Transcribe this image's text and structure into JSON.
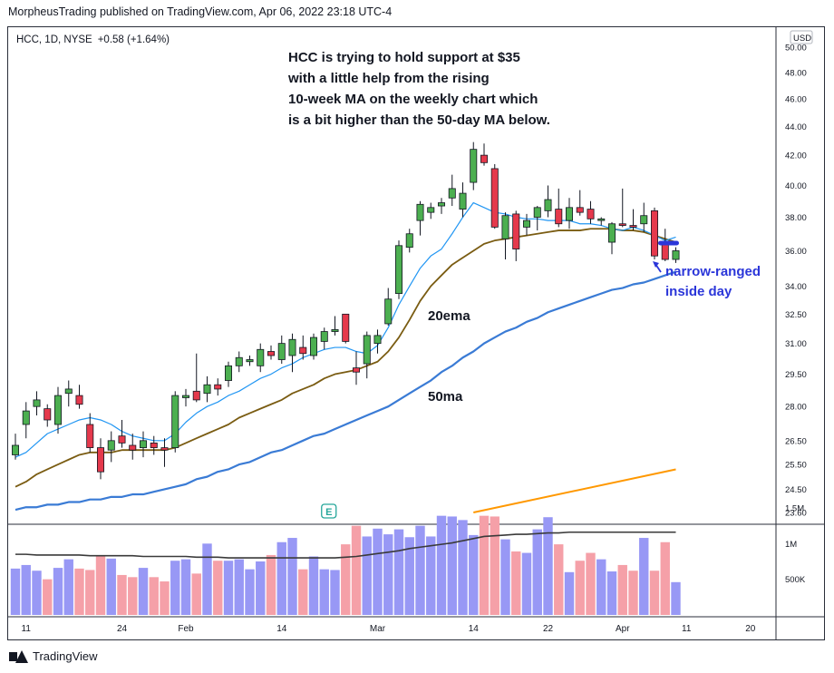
{
  "header": {
    "published": "MorpheusTrading published on TradingView.com, Apr 06, 2022 23:18 UTC-4"
  },
  "footer": {
    "brand": "TradingView"
  },
  "chart_data": {
    "type": "candlestick",
    "symbol_line": {
      "symbol": "HCC, 1D, NYSE",
      "change": "+0.58 (+1.64%)"
    },
    "currency": "USD",
    "y_ticks": [
      "50.00",
      "48.00",
      "46.00",
      "44.00",
      "42.00",
      "40.00",
      "38.00",
      "36.00",
      "34.00",
      "32.50",
      "31.00",
      "29.50",
      "28.00",
      "26.50",
      "25.50",
      "24.50",
      "23.60"
    ],
    "y_tick_values": [
      50,
      48,
      46,
      44,
      42,
      40,
      38,
      36,
      34,
      32.5,
      31,
      29.5,
      28,
      26.5,
      25.5,
      24.5,
      23.6
    ],
    "volume_ticks": [
      "1.5M",
      "1M",
      "500K"
    ],
    "volume_tick_values": [
      1500000,
      1000000,
      500000
    ],
    "x_ticks": [
      "11",
      "24",
      "Feb",
      "14",
      "Mar",
      "14",
      "22",
      "Apr",
      "11",
      "20"
    ],
    "x_tick_bar_index": [
      1,
      10,
      16,
      25,
      34,
      43,
      50,
      57,
      63,
      69
    ],
    "candles": [
      {
        "o": 25.9,
        "h": 26.8,
        "l": 25.7,
        "c": 26.3
      },
      {
        "o": 27.2,
        "h": 28.2,
        "l": 26.6,
        "c": 27.8
      },
      {
        "o": 28.0,
        "h": 28.7,
        "l": 27.6,
        "c": 28.3
      },
      {
        "o": 27.9,
        "h": 28.1,
        "l": 27.1,
        "c": 27.4
      },
      {
        "o": 27.2,
        "h": 28.9,
        "l": 26.8,
        "c": 28.5
      },
      {
        "o": 28.6,
        "h": 29.2,
        "l": 28.0,
        "c": 28.8
      },
      {
        "o": 28.5,
        "h": 29.0,
        "l": 27.9,
        "c": 28.1
      },
      {
        "o": 27.2,
        "h": 27.7,
        "l": 26.0,
        "c": 26.2
      },
      {
        "o": 26.2,
        "h": 26.6,
        "l": 24.9,
        "c": 25.2
      },
      {
        "o": 26.1,
        "h": 26.9,
        "l": 25.6,
        "c": 26.5
      },
      {
        "o": 26.7,
        "h": 27.4,
        "l": 26.2,
        "c": 26.4
      },
      {
        "o": 26.3,
        "h": 26.8,
        "l": 25.7,
        "c": 26.1
      },
      {
        "o": 26.2,
        "h": 26.9,
        "l": 25.8,
        "c": 26.5
      },
      {
        "o": 26.4,
        "h": 26.7,
        "l": 25.9,
        "c": 26.2
      },
      {
        "o": 26.2,
        "h": 26.6,
        "l": 25.4,
        "c": 26.1
      },
      {
        "o": 26.2,
        "h": 28.7,
        "l": 26.0,
        "c": 28.5
      },
      {
        "o": 28.4,
        "h": 28.8,
        "l": 28.0,
        "c": 28.5
      },
      {
        "o": 28.7,
        "h": 30.5,
        "l": 28.2,
        "c": 28.3
      },
      {
        "o": 28.6,
        "h": 29.4,
        "l": 28.2,
        "c": 29.0
      },
      {
        "o": 29.0,
        "h": 29.3,
        "l": 28.5,
        "c": 28.8
      },
      {
        "o": 29.2,
        "h": 30.1,
        "l": 28.9,
        "c": 29.9
      },
      {
        "o": 29.9,
        "h": 30.6,
        "l": 29.6,
        "c": 30.3
      },
      {
        "o": 30.1,
        "h": 30.4,
        "l": 29.9,
        "c": 30.2
      },
      {
        "o": 29.9,
        "h": 31.0,
        "l": 29.6,
        "c": 30.7
      },
      {
        "o": 30.6,
        "h": 30.9,
        "l": 30.2,
        "c": 30.4
      },
      {
        "o": 30.2,
        "h": 31.4,
        "l": 30.0,
        "c": 31.0
      },
      {
        "o": 30.4,
        "h": 31.5,
        "l": 29.6,
        "c": 31.2
      },
      {
        "o": 30.8,
        "h": 31.4,
        "l": 30.2,
        "c": 30.5
      },
      {
        "o": 30.4,
        "h": 31.5,
        "l": 30.2,
        "c": 31.3
      },
      {
        "o": 31.1,
        "h": 31.8,
        "l": 30.7,
        "c": 31.6
      },
      {
        "o": 31.6,
        "h": 32.4,
        "l": 31.4,
        "c": 31.7
      },
      {
        "o": 32.5,
        "h": 32.5,
        "l": 31.0,
        "c": 31.1
      },
      {
        "o": 29.8,
        "h": 30.6,
        "l": 29.0,
        "c": 29.6
      },
      {
        "o": 30.0,
        "h": 31.6,
        "l": 29.3,
        "c": 31.4
      },
      {
        "o": 31.0,
        "h": 31.7,
        "l": 30.5,
        "c": 31.4
      },
      {
        "o": 32.0,
        "h": 33.9,
        "l": 31.9,
        "c": 33.3
      },
      {
        "o": 33.6,
        "h": 36.6,
        "l": 33.3,
        "c": 36.3
      },
      {
        "o": 36.2,
        "h": 37.3,
        "l": 35.9,
        "c": 37.0
      },
      {
        "o": 37.8,
        "h": 39.0,
        "l": 36.9,
        "c": 38.8
      },
      {
        "o": 38.3,
        "h": 38.9,
        "l": 37.9,
        "c": 38.6
      },
      {
        "o": 38.7,
        "h": 39.2,
        "l": 38.2,
        "c": 38.9
      },
      {
        "o": 39.2,
        "h": 40.7,
        "l": 38.7,
        "c": 39.8
      },
      {
        "o": 38.5,
        "h": 40.2,
        "l": 38.0,
        "c": 39.5
      },
      {
        "o": 40.2,
        "h": 42.9,
        "l": 39.7,
        "c": 42.4
      },
      {
        "o": 42.0,
        "h": 42.8,
        "l": 41.3,
        "c": 41.5
      },
      {
        "o": 41.1,
        "h": 41.4,
        "l": 37.3,
        "c": 37.4
      },
      {
        "o": 36.7,
        "h": 38.3,
        "l": 35.5,
        "c": 38.1
      },
      {
        "o": 38.2,
        "h": 38.4,
        "l": 35.4,
        "c": 36.1
      },
      {
        "o": 37.4,
        "h": 38.2,
        "l": 36.9,
        "c": 37.8
      },
      {
        "o": 38.0,
        "h": 38.7,
        "l": 37.2,
        "c": 38.6
      },
      {
        "o": 38.4,
        "h": 40.0,
        "l": 38.0,
        "c": 39.1
      },
      {
        "o": 38.5,
        "h": 39.8,
        "l": 37.4,
        "c": 37.6
      },
      {
        "o": 37.8,
        "h": 39.2,
        "l": 37.3,
        "c": 38.6
      },
      {
        "o": 38.6,
        "h": 39.7,
        "l": 38.1,
        "c": 38.3
      },
      {
        "o": 38.5,
        "h": 39.0,
        "l": 37.6,
        "c": 37.9
      },
      {
        "o": 37.8,
        "h": 38.0,
        "l": 37.5,
        "c": 37.9
      },
      {
        "o": 36.5,
        "h": 37.7,
        "l": 35.8,
        "c": 37.6
      },
      {
        "o": 37.6,
        "h": 39.8,
        "l": 37.4,
        "c": 37.5
      },
      {
        "o": 37.5,
        "h": 38.5,
        "l": 37.2,
        "c": 37.4
      },
      {
        "o": 37.6,
        "h": 38.9,
        "l": 37.1,
        "c": 38.1
      },
      {
        "o": 38.4,
        "h": 38.6,
        "l": 35.5,
        "c": 35.7
      },
      {
        "o": 36.5,
        "h": 37.3,
        "l": 35.4,
        "c": 35.5
      },
      {
        "o": 35.5,
        "h": 36.2,
        "l": 35.3,
        "c": 36.0
      }
    ],
    "volume": [
      650000,
      700000,
      620000,
      500000,
      660000,
      780000,
      650000,
      630000,
      830000,
      790000,
      560000,
      530000,
      660000,
      530000,
      470000,
      760000,
      780000,
      580000,
      1000000,
      760000,
      760000,
      780000,
      640000,
      750000,
      840000,
      1020000,
      1080000,
      640000,
      820000,
      640000,
      630000,
      990000,
      1250000,
      1100000,
      1210000,
      1130000,
      1200000,
      1090000,
      1250000,
      1100000,
      1390000,
      1380000,
      1330000,
      1120000,
      1390000,
      1380000,
      1060000,
      890000,
      870000,
      1200000,
      1370000,
      990000,
      600000,
      760000,
      870000,
      780000,
      610000,
      700000,
      620000,
      1080000,
      620000,
      1020000,
      460000
    ],
    "volume_ma": [
      850000,
      850000,
      840000,
      840000,
      840000,
      840000,
      840000,
      830000,
      830000,
      830000,
      830000,
      830000,
      820000,
      820000,
      820000,
      820000,
      820000,
      810000,
      810000,
      810000,
      800000,
      800000,
      800000,
      800000,
      800000,
      800000,
      800000,
      800000,
      800000,
      800000,
      800000,
      810000,
      820000,
      840000,
      860000,
      880000,
      900000,
      930000,
      950000,
      970000,
      990000,
      1010000,
      1040000,
      1070000,
      1100000,
      1110000,
      1120000,
      1130000,
      1130000,
      1140000,
      1150000,
      1150000,
      1160000,
      1160000,
      1160000,
      1160000,
      1160000,
      1160000,
      1160000,
      1160000,
      1160000,
      1160000,
      1160000
    ],
    "ema20": [
      24.6,
      24.8,
      25.1,
      25.3,
      25.5,
      25.7,
      25.9,
      26.0,
      26.0,
      26.0,
      26.1,
      26.1,
      26.1,
      26.1,
      26.1,
      26.2,
      26.4,
      26.6,
      26.8,
      27.0,
      27.2,
      27.5,
      27.7,
      27.9,
      28.1,
      28.3,
      28.6,
      28.8,
      29.0,
      29.3,
      29.5,
      29.6,
      29.7,
      29.9,
      30.1,
      30.6,
      31.3,
      32.2,
      33.2,
      34.0,
      34.6,
      35.2,
      35.6,
      36.0,
      36.4,
      36.6,
      36.7,
      36.8,
      36.9,
      37.0,
      37.1,
      37.2,
      37.2,
      37.2,
      37.3,
      37.3,
      37.3,
      37.2,
      37.2,
      37.1,
      36.9,
      36.7,
      36.5
    ],
    "ma50": [
      23.7,
      23.8,
      23.8,
      23.9,
      23.9,
      24.0,
      24.0,
      24.1,
      24.1,
      24.2,
      24.2,
      24.3,
      24.3,
      24.4,
      24.5,
      24.6,
      24.7,
      24.9,
      25.0,
      25.2,
      25.3,
      25.5,
      25.6,
      25.8,
      26.0,
      26.1,
      26.3,
      26.5,
      26.7,
      26.8,
      27.0,
      27.2,
      27.4,
      27.6,
      27.8,
      28.0,
      28.3,
      28.6,
      28.9,
      29.2,
      29.6,
      29.9,
      30.3,
      30.6,
      31.0,
      31.3,
      31.6,
      31.8,
      32.1,
      32.3,
      32.6,
      32.8,
      33.0,
      33.2,
      33.4,
      33.6,
      33.8,
      33.9,
      34.1,
      34.2,
      34.4,
      34.6,
      34.8
    ],
    "ma10_weekly": [
      25.8,
      26.0,
      26.4,
      26.8,
      27.0,
      27.2,
      27.4,
      27.5,
      27.4,
      27.2,
      26.9,
      26.7,
      26.6,
      26.5,
      26.5,
      26.8,
      27.3,
      27.7,
      28.0,
      28.2,
      28.5,
      28.7,
      29.0,
      29.3,
      29.5,
      29.8,
      30.0,
      30.3,
      30.5,
      30.7,
      30.8,
      30.8,
      30.6,
      30.5,
      30.9,
      31.8,
      33.0,
      34.0,
      35.0,
      35.7,
      36.1,
      37.0,
      38.0,
      38.9,
      38.6,
      38.3,
      38.2,
      38.0,
      37.9,
      37.9,
      37.8,
      37.8,
      37.8,
      37.6,
      37.6,
      37.5,
      37.3,
      37.2,
      37.4,
      37.2,
      36.9,
      36.6,
      36.8
    ],
    "ma200_orange": {
      "values": [
        23.6,
        25.3
      ],
      "from_bar": 43,
      "to_bar": 62
    },
    "annotations": {
      "main": [
        "HCC is trying to hold support at  $35",
        "with a little help from the rising",
        "10-week MA on the weekly chart which",
        "is a bit higher than the 50-day MA below."
      ],
      "ema_label": "20ema",
      "ma_label": "50ma",
      "narrow": [
        "narrow-ranged",
        "inside day"
      ]
    },
    "earnings_marker": "E",
    "colors": {
      "up": "#4caf50",
      "down": "#e5394c",
      "ma10": "#2196f3",
      "ema20": "#7a5c12",
      "ma50": "#3a7bd5",
      "ma_orange": "#ff9800",
      "vol_up": "#9898f5",
      "vol_down": "#f5a0a8",
      "vol_ma": "#3a3a3a",
      "annot_blue": "#2b36d9",
      "marker_green": "#26a69a"
    }
  }
}
